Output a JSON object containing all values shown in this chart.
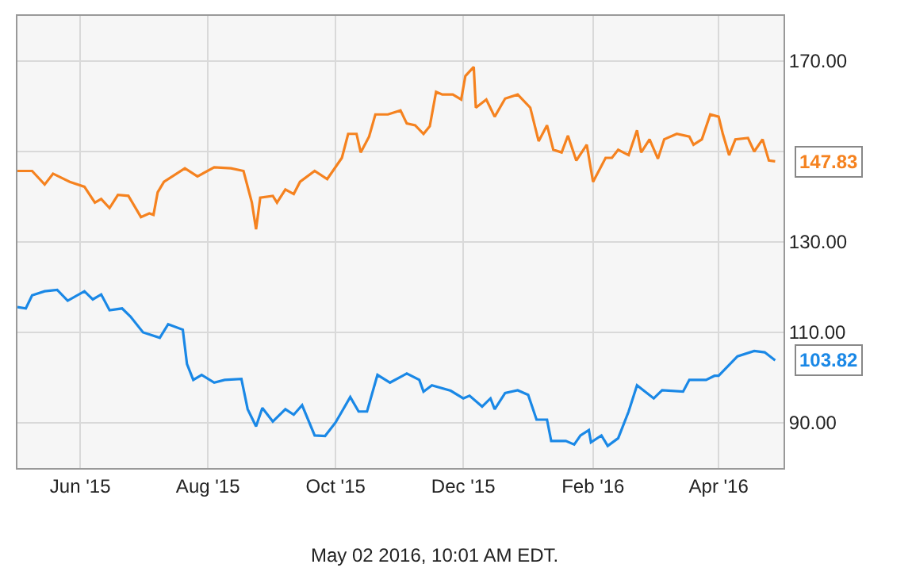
{
  "chart_data": {
    "type": "line",
    "series": [
      {
        "color": "#1a88e6",
        "x": [
          "2015-05-02",
          "2015-05-06",
          "2015-05-09",
          "2015-05-15",
          "2015-05-21",
          "2015-05-26",
          "2015-06-03",
          "2015-06-07",
          "2015-06-11",
          "2015-06-15",
          "2015-06-21",
          "2015-06-25",
          "2015-07-01",
          "2015-07-09",
          "2015-07-13",
          "2015-07-20",
          "2015-07-22",
          "2015-07-25",
          "2015-07-29",
          "2015-08-04",
          "2015-08-09",
          "2015-08-17",
          "2015-08-20",
          "2015-08-24",
          "2015-08-27",
          "2015-09-01",
          "2015-09-07",
          "2015-09-11",
          "2015-09-15",
          "2015-09-21",
          "2015-09-26",
          "2015-10-01",
          "2015-10-08",
          "2015-10-12",
          "2015-10-16",
          "2015-10-21",
          "2015-10-27",
          "2015-11-04",
          "2015-11-10",
          "2015-11-12",
          "2015-11-16",
          "2015-11-25",
          "2015-12-01",
          "2015-12-04",
          "2015-12-10",
          "2015-12-14",
          "2015-12-16",
          "2015-12-21",
          "2015-12-27",
          "2016-01-01",
          "2016-01-05",
          "2016-01-10",
          "2016-01-12",
          "2016-01-19",
          "2016-01-23",
          "2016-01-26",
          "2016-01-30",
          "2016-01-31",
          "2016-02-05",
          "2016-02-08",
          "2016-02-13",
          "2016-02-18",
          "2016-02-22",
          "2016-03-01",
          "2016-03-05",
          "2016-03-15",
          "2016-03-18",
          "2016-03-26",
          "2016-03-30",
          "2016-04-01",
          "2016-04-10",
          "2016-04-18",
          "2016-04-23",
          "2016-04-28"
        ],
        "values": [
          115.6,
          115.3,
          118.2,
          119.1,
          119.4,
          117.0,
          119.1,
          117.3,
          118.4,
          114.9,
          115.3,
          113.5,
          110.0,
          108.8,
          111.8,
          110.6,
          103.0,
          99.5,
          100.6,
          98.9,
          99.5,
          99.7,
          93.0,
          89.2,
          93.3,
          90.3,
          93.0,
          91.8,
          93.9,
          87.2,
          87.1,
          90.1,
          95.7,
          92.5,
          92.5,
          100.6,
          98.9,
          100.9,
          99.5,
          96.9,
          98.3,
          97.1,
          95.4,
          96.0,
          93.6,
          95.4,
          93.0,
          96.6,
          97.2,
          96.2,
          90.7,
          90.7,
          86.0,
          86.0,
          85.2,
          87.2,
          88.4,
          85.7,
          87.2,
          84.9,
          86.6,
          92.5,
          98.3,
          95.4,
          97.2,
          96.9,
          99.5,
          99.5,
          100.4,
          100.4,
          104.7,
          105.9,
          105.6,
          103.82
        ]
      },
      {
        "color": "#f5821f",
        "x": [
          "2015-05-02",
          "2015-05-09",
          "2015-05-15",
          "2015-05-19",
          "2015-05-27",
          "2015-06-03",
          "2015-06-08",
          "2015-06-11",
          "2015-06-15",
          "2015-06-19",
          "2015-06-24",
          "2015-06-30",
          "2015-07-04",
          "2015-07-06",
          "2015-07-08",
          "2015-07-11",
          "2015-07-21",
          "2015-07-27",
          "2015-08-04",
          "2015-08-12",
          "2015-08-18",
          "2015-08-22",
          "2015-08-24",
          "2015-08-26",
          "2015-09-01",
          "2015-09-03",
          "2015-09-07",
          "2015-09-11",
          "2015-09-14",
          "2015-09-21",
          "2015-09-27",
          "2015-10-04",
          "2015-10-07",
          "2015-10-11",
          "2015-10-13",
          "2015-10-17",
          "2015-10-20",
          "2015-10-26",
          "2015-11-01",
          "2015-11-04",
          "2015-11-08",
          "2015-11-12",
          "2015-11-15",
          "2015-11-18",
          "2015-11-21",
          "2015-11-26",
          "2015-11-30",
          "2015-12-02",
          "2015-12-06",
          "2015-12-07",
          "2015-12-12",
          "2015-12-16",
          "2015-12-21",
          "2015-12-27",
          "2016-01-02",
          "2016-01-06",
          "2016-01-10",
          "2016-01-13",
          "2016-01-17",
          "2016-01-20",
          "2016-01-24",
          "2016-01-29",
          "2016-02-01",
          "2016-02-07",
          "2016-02-10",
          "2016-02-13",
          "2016-02-18",
          "2016-02-22",
          "2016-02-24",
          "2016-02-28",
          "2016-03-03",
          "2016-03-06",
          "2016-03-12",
          "2016-03-18",
          "2016-03-20",
          "2016-03-24",
          "2016-03-28",
          "2016-04-01",
          "2016-04-03",
          "2016-04-06",
          "2016-04-09",
          "2016-04-15",
          "2016-04-18",
          "2016-04-22",
          "2016-04-25",
          "2016-04-28"
        ],
        "values": [
          145.7,
          145.7,
          142.7,
          145.1,
          143.3,
          142.2,
          138.7,
          139.5,
          137.5,
          140.4,
          140.2,
          135.5,
          136.3,
          136.0,
          141.0,
          143.3,
          146.3,
          144.5,
          146.5,
          146.3,
          145.7,
          138.7,
          132.8,
          139.8,
          140.2,
          138.7,
          141.6,
          140.6,
          143.3,
          145.7,
          143.9,
          148.6,
          153.9,
          153.9,
          149.8,
          153.3,
          158.2,
          158.2,
          159.1,
          156.2,
          155.8,
          153.9,
          155.6,
          163.2,
          162.6,
          162.6,
          161.5,
          166.7,
          168.7,
          159.7,
          161.5,
          157.7,
          161.7,
          162.6,
          159.7,
          152.3,
          155.8,
          150.4,
          149.8,
          153.5,
          148.0,
          151.5,
          143.3,
          148.6,
          148.6,
          150.4,
          149.2,
          154.7,
          149.8,
          152.7,
          148.4,
          152.7,
          153.9,
          153.3,
          151.5,
          152.7,
          158.2,
          157.7,
          153.9,
          149.2,
          152.7,
          153.0,
          150.0,
          152.7,
          148.0,
          147.83
        ]
      }
    ],
    "xlim": [
      "2015-05-02",
      "2016-05-02"
    ],
    "xticks": [
      {
        "value": "2015-06-01",
        "label": "Jun '15"
      },
      {
        "value": "2015-08-01",
        "label": "Aug '15"
      },
      {
        "value": "2015-10-01",
        "label": "Oct '15"
      },
      {
        "value": "2015-12-01",
        "label": "Dec '15"
      },
      {
        "value": "2016-02-01",
        "label": "Feb '16"
      },
      {
        "value": "2016-04-01",
        "label": "Apr '16"
      }
    ],
    "ylim": [
      80,
      180
    ],
    "yticks": [
      {
        "value": 90,
        "label": "90.00"
      },
      {
        "value": 110,
        "label": "110.00"
      },
      {
        "value": 130,
        "label": "130.00"
      },
      {
        "value": 150,
        "label": null
      },
      {
        "value": 170,
        "label": "170.00"
      }
    ],
    "grid": true,
    "annotations": [
      {
        "text": "103.82",
        "x": "2016-04-28",
        "y": 103.82
      },
      {
        "text": "147.83",
        "x": "2016-04-28",
        "y": 147.83
      },
      "May 02 2016, 10:01 AM EDT."
    ]
  }
}
